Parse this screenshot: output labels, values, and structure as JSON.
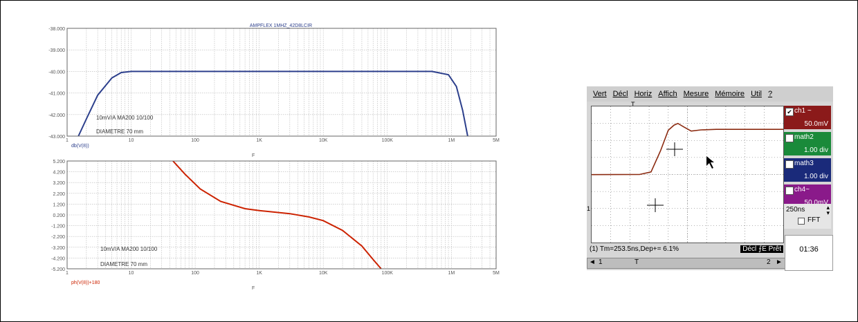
{
  "bode": {
    "title": "AMPFLEX 1MHZ_42D8LCIR",
    "mag": {
      "ylim": [
        -43.0,
        -38.0
      ],
      "ticks": [
        "-38.000",
        "-39.000",
        "-40.000",
        "-41.000",
        "-42.000",
        "-43.000"
      ],
      "trace_label": "db(V(8))",
      "annotation1": "10mV/A MA200 10/100",
      "annotation2": "DIAMETRE 70 mm"
    },
    "phase": {
      "ylim": [
        -5.2,
        5.2
      ],
      "ticks": [
        "5.200",
        "4.200",
        "3.200",
        "2.200",
        "1.200",
        "0.200",
        "-1.200",
        "-2.200",
        "-3.200",
        "-4.200",
        "-5.200"
      ],
      "trace_label": "ph(V(8))+180",
      "annotation1": "10mV/A MA200 10/100",
      "annotation2": "DIAMETRE 70 mm"
    },
    "xticks": [
      "1",
      "10",
      "100",
      "1K",
      "10K",
      "100K",
      "1M",
      "5M"
    ],
    "xlabel": "F",
    "colors": {
      "mag": "#2c3f8c",
      "phase": "#cc2200"
    }
  },
  "chart_data": [
    {
      "type": "line",
      "x_scale": "log",
      "xlim": [
        1,
        5000000
      ],
      "ylim": [
        -43.0,
        -38.0
      ],
      "series": [
        {
          "name": "db(V(8))",
          "x": [
            1.5,
            2,
            3,
            5,
            7,
            10,
            100,
            1000,
            10000,
            100000,
            500000,
            900000,
            1200000,
            1500000,
            1800000
          ],
          "y": [
            -43,
            -42.2,
            -41.1,
            -40.3,
            -40.05,
            -40.0,
            -40.0,
            -40.0,
            -40.0,
            -40.0,
            -40.0,
            -40.15,
            -40.7,
            -41.8,
            -43
          ]
        }
      ]
    },
    {
      "type": "line",
      "x_scale": "log",
      "xlim": [
        1,
        5000000
      ],
      "ylim": [
        -5.2,
        5.2
      ],
      "series": [
        {
          "name": "ph(V(8))+180",
          "x": [
            45,
            70,
            120,
            250,
            600,
            1000,
            3000,
            6000,
            10000,
            20000,
            40000,
            60000,
            80000
          ],
          "y": [
            5.2,
            3.9,
            2.5,
            1.3,
            0.6,
            0.42,
            0.12,
            -0.2,
            -0.55,
            -1.5,
            -3.0,
            -4.3,
            -5.2
          ]
        }
      ]
    },
    {
      "type": "line",
      "xlim": [
        0,
        10
      ],
      "ylim": [
        -4,
        4
      ],
      "series": [
        {
          "name": "ch1",
          "x": [
            0,
            2.5,
            3.1,
            3.6,
            4.0,
            4.3,
            4.5,
            4.8,
            5.2,
            5.7,
            6.5,
            10
          ],
          "y": [
            -0.01,
            0,
            0.15,
            1.4,
            2.6,
            2.9,
            3.0,
            2.8,
            2.55,
            2.62,
            2.65,
            2.65
          ]
        }
      ]
    }
  ],
  "scope": {
    "menu": [
      "Vert",
      "Décl",
      "Horiz",
      "Affich",
      "Mesure",
      "Mémoire",
      "Util",
      "?"
    ],
    "trigger_marker": "T",
    "ground_marker": "1",
    "channels": [
      {
        "name": "ch1 ~",
        "value": "50.0mV",
        "checked": true,
        "check_mark": "✔",
        "color": "#8b1a1a"
      },
      {
        "name": "math2",
        "value": "1.00 div",
        "checked": false,
        "check_mark": "",
        "color": "#1a8a3a"
      },
      {
        "name": "math3",
        "value": "1.00 div",
        "checked": false,
        "check_mark": "",
        "color": "#1a2a7a"
      },
      {
        "name": "ch4~",
        "value": "50.0mV",
        "checked": false,
        "check_mark": "",
        "color": "#8a1a8a"
      }
    ],
    "timebase": "250ns",
    "fft_label": "FFT",
    "status_text": "(1) Tm=253.5ns,Dep+= 6.1%",
    "trigger_status": "Décl ⨍E Prêt",
    "clock": "01:36",
    "scroll_left": "◄",
    "scroll_pos": "1",
    "scroll_trigger": "T",
    "scroll_page": "2",
    "scroll_right": "►",
    "trace_color": "#8b2a10"
  }
}
